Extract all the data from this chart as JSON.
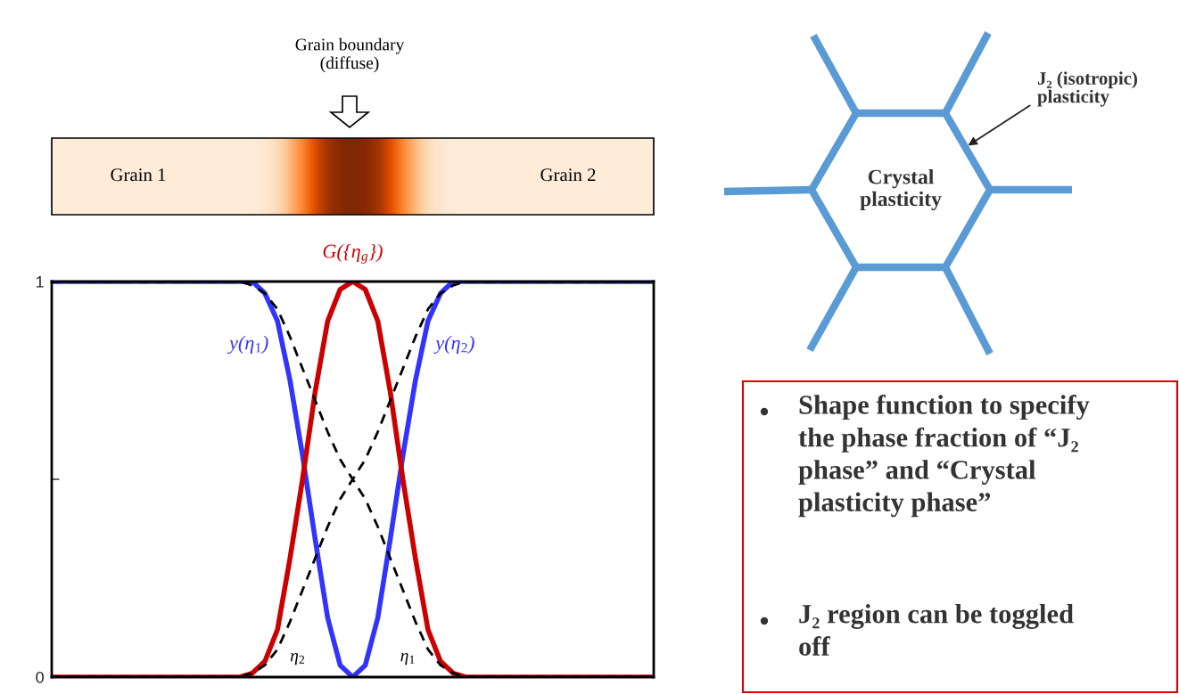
{
  "chart_data": {
    "type": "line",
    "categories": [
      null,
      null,
      null,
      null,
      null,
      null,
      null,
      null,
      null,
      null,
      null,
      null,
      null,
      null,
      null,
      null,
      null,
      null,
      null,
      null,
      null,
      null,
      null,
      null,
      null,
      null,
      null,
      null,
      null,
      null,
      null,
      null,
      null,
      null,
      null,
      null,
      null,
      null,
      null,
      null,
      null,
      null,
      null,
      null,
      null,
      null,
      null,
      null,
      null
    ],
    "series": [
      {
        "name": "y(η$_{1}$)",
        "color": "#3333ff",
        "line_style": "solid",
        "values": [
          1,
          1,
          1,
          1,
          1,
          1,
          1,
          1,
          1,
          1,
          1,
          1,
          1,
          1,
          1,
          1,
          1,
          0.97,
          0.9,
          0.75,
          0.56,
          0.35,
          0.15,
          0.03,
          0,
          null,
          null,
          null,
          null,
          null,
          null,
          null,
          null,
          null,
          null,
          null,
          null,
          null,
          null,
          null,
          null,
          null,
          null,
          null,
          null,
          null,
          null,
          null,
          null
        ]
      },
      {
        "name": "y(η$_{2}$)",
        "color": "#3333ff",
        "line_style": "solid",
        "values": [
          null,
          null,
          null,
          null,
          null,
          null,
          null,
          null,
          null,
          null,
          null,
          null,
          null,
          null,
          null,
          null,
          null,
          null,
          null,
          null,
          null,
          null,
          null,
          null,
          0,
          0.03,
          0.15,
          0.35,
          0.56,
          0.75,
          0.9,
          0.97,
          1,
          1,
          1,
          1,
          1,
          1,
          1,
          1,
          1,
          1,
          1,
          1,
          1,
          1,
          1,
          1,
          1
        ]
      },
      {
        "name": "G({η$_{g}$})",
        "color": "#cc0000",
        "line_style": "solid",
        "values": [
          0,
          0,
          0,
          0,
          0,
          0,
          0,
          0,
          0,
          0,
          0,
          0,
          0,
          0,
          0,
          0,
          0.01,
          0.04,
          0.12,
          0.3,
          0.5,
          0.72,
          0.9,
          0.98,
          1,
          0.98,
          0.9,
          0.72,
          0.5,
          0.3,
          0.12,
          0.04,
          0.01,
          0,
          0,
          0,
          0,
          0,
          0,
          0,
          0,
          0,
          0,
          0,
          0,
          0,
          0,
          0,
          0
        ]
      },
      {
        "name": "η$_{1}$",
        "color": "#000000",
        "line_style": "dashed",
        "values": [
          1,
          1,
          1,
          1,
          1,
          1,
          1,
          1,
          1,
          1,
          1,
          1,
          1,
          1,
          1,
          1,
          0.99,
          0.97,
          0.93,
          0.86,
          0.78,
          0.7,
          0.62,
          0.55,
          0.5,
          0.45,
          0.38,
          0.3,
          0.22,
          0.14,
          0.07,
          0.03,
          0.01,
          0,
          0,
          0,
          0,
          0,
          0,
          0,
          0,
          0,
          0,
          0,
          0,
          0,
          0,
          0,
          0
        ]
      },
      {
        "name": "η$_{2}$",
        "color": "#000000",
        "line_style": "dashed",
        "values": [
          0,
          0,
          0,
          0,
          0,
          0,
          0,
          0,
          0,
          0,
          0,
          0,
          0,
          0,
          0,
          0,
          0.01,
          0.03,
          0.07,
          0.14,
          0.22,
          0.3,
          0.38,
          0.45,
          0.5,
          0.55,
          0.62,
          0.7,
          0.78,
          0.86,
          0.93,
          0.97,
          0.99,
          1,
          1,
          1,
          1,
          1,
          1,
          1,
          1,
          1,
          1,
          1,
          1,
          1,
          1,
          1,
          1
        ]
      }
    ],
    "ylim": [
      0,
      1
    ],
    "yticks": [
      0,
      {
        "value": 0.5,
        "label": null
      },
      1
    ],
    "tick_labels": "y",
    "annotations": [
      "Grain boundary\n(diffuse)",
      "Grain 1",
      "Grain 2",
      "Crystal\nplasticity",
      "J₂ (isotropic)\nplasticity",
      "Shape function to specify\nthe phase fraction of “J₂\nphase” and “Crystal\nplasticity phase”",
      "J₂ region can be toggled\noff"
    ]
  }
}
